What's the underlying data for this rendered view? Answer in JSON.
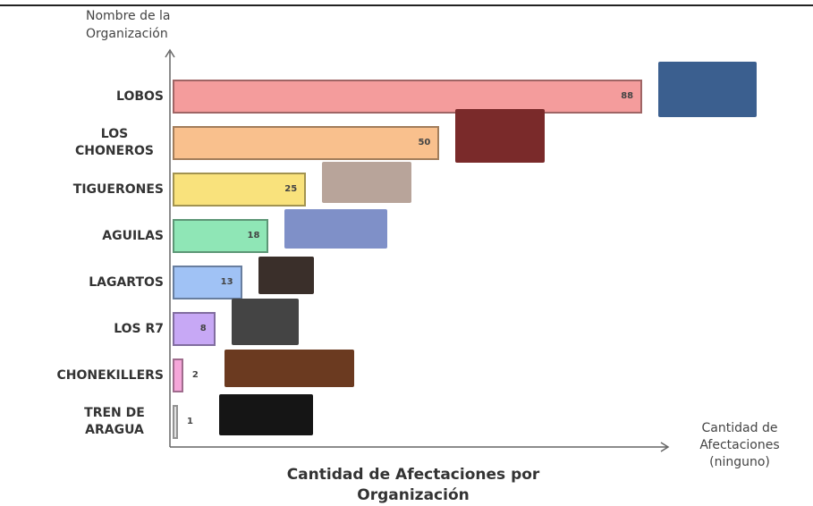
{
  "chart_data": {
    "type": "bar",
    "orientation": "horizontal",
    "title": "Cantidad de Afectaciones por Organización",
    "y_label": "Nombre de la Organización",
    "x_label": "Cantidad de Afectaciones (ninguno)",
    "categories": [
      "LOBOS",
      "LOS CHONEROS",
      "TIGUERONES",
      "AGUILAS",
      "LAGARTOS",
      "LOS R7",
      "CHONEKILLERS",
      "TREN DE ARAGUA"
    ],
    "values": [
      88,
      50,
      25,
      18,
      13,
      8,
      2,
      1
    ],
    "colors": [
      "#f49c9c",
      "#f9c08d",
      "#f9e27c",
      "#8fe6b6",
      "#a0c2f5",
      "#c7a8f5",
      "#f5a6d9",
      "#e2e2e2"
    ],
    "xlim": [
      0,
      92
    ]
  }
}
